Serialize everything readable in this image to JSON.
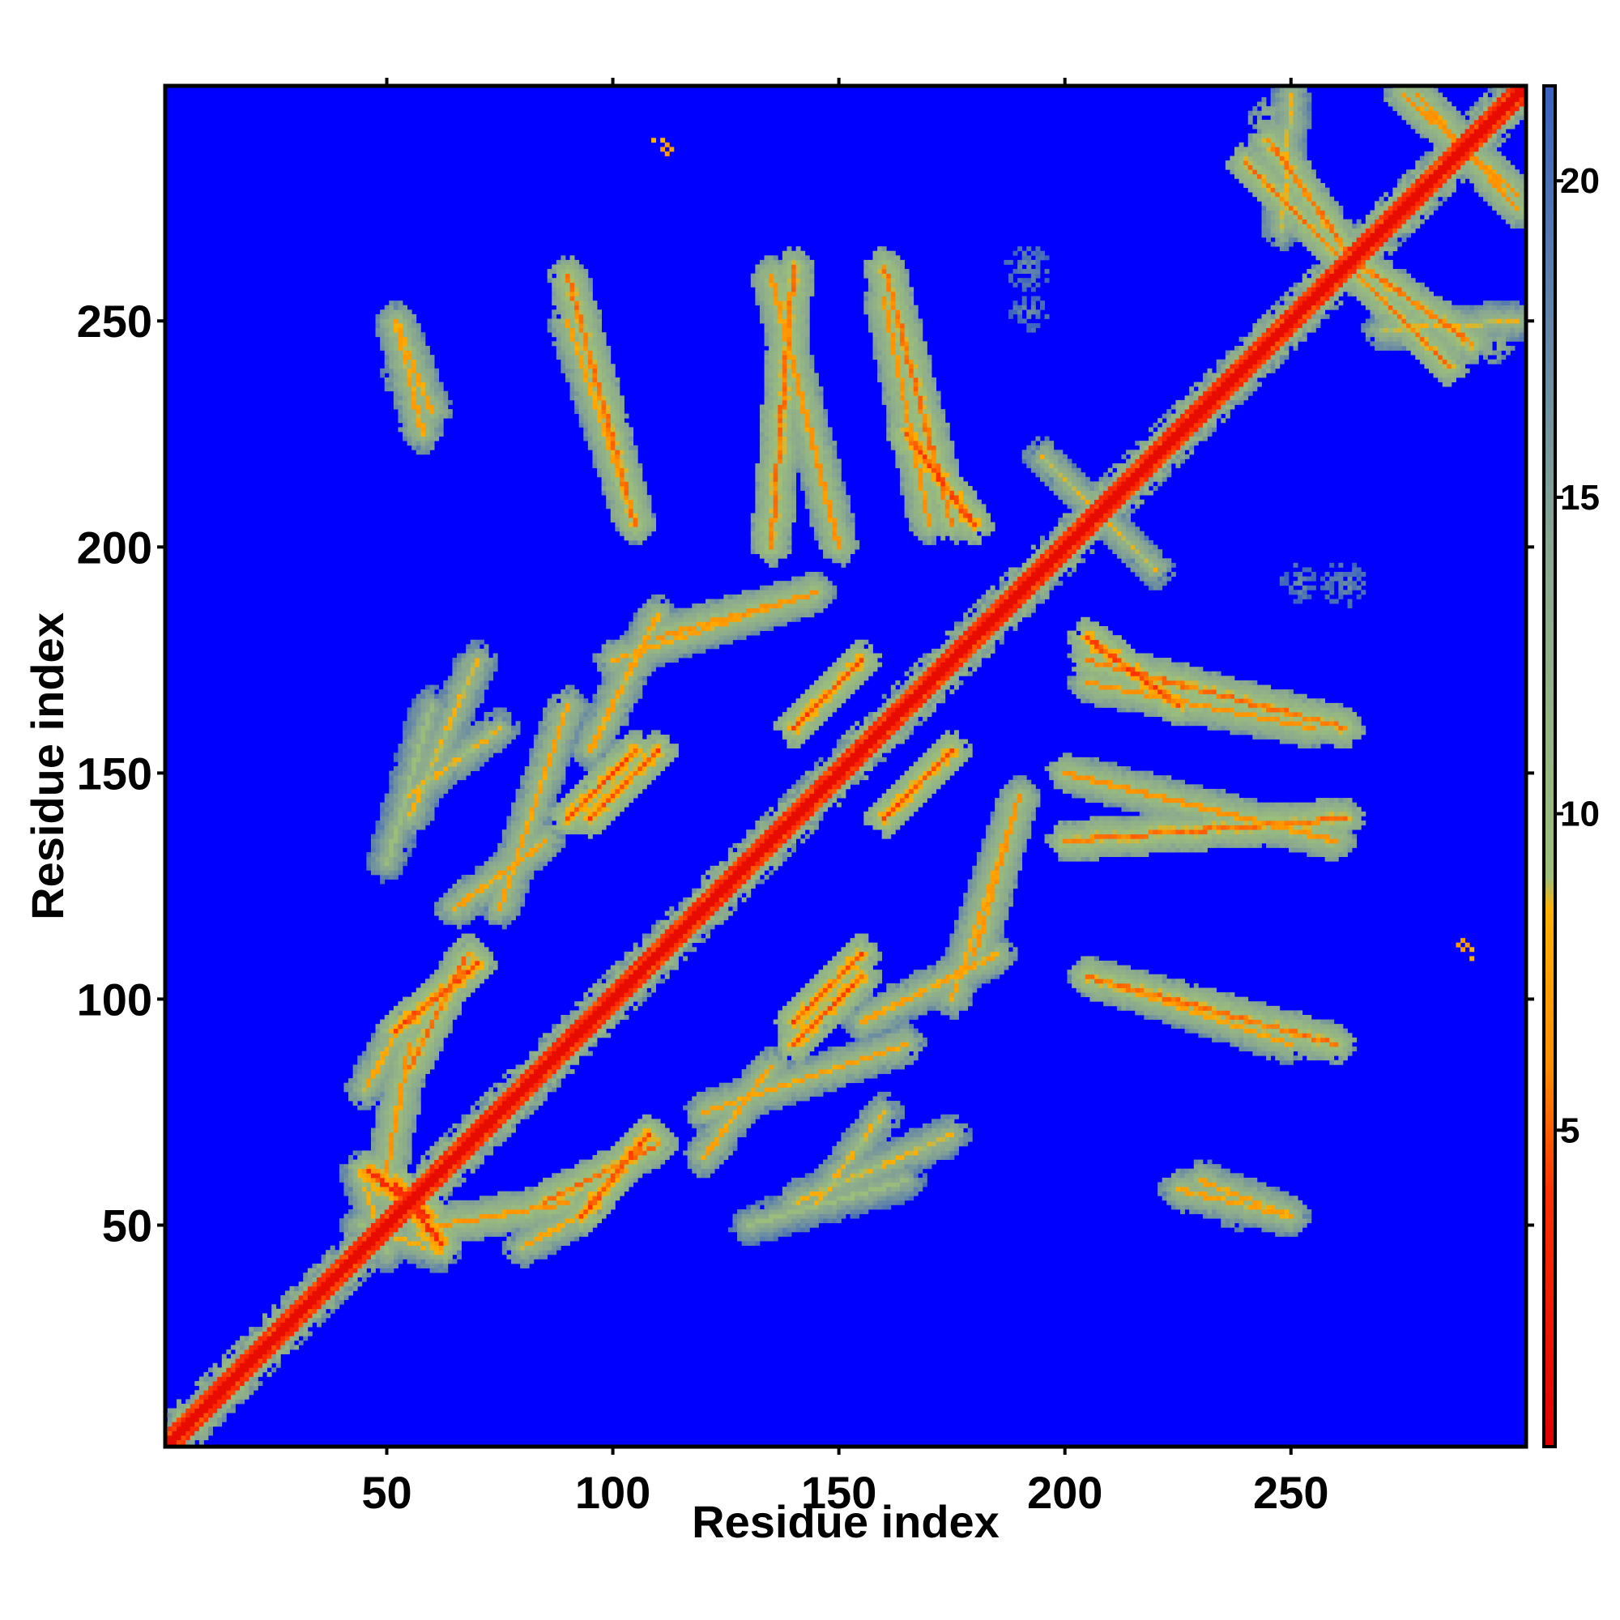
{
  "chart_data": {
    "type": "heatmap",
    "title": "",
    "xlabel": "Residue index",
    "ylabel": "Residue index",
    "xlim": [
      1,
      302
    ],
    "ylim": [
      1,
      302
    ],
    "x_ticks": [
      50,
      100,
      150,
      200,
      250
    ],
    "y_ticks": [
      50,
      100,
      150,
      200,
      250
    ],
    "colorbar": {
      "range": [
        0,
        21.5
      ],
      "ticks": [
        5,
        10,
        15,
        20
      ],
      "stops": [
        {
          "value": 0,
          "color": "#e00000"
        },
        {
          "value": 4,
          "color": "#ff3000"
        },
        {
          "value": 6,
          "color": "#ff8c00"
        },
        {
          "value": 8.5,
          "color": "#ffb000"
        },
        {
          "value": 9,
          "color": "#9cbf7a"
        },
        {
          "value": 14,
          "color": "#8aa890"
        },
        {
          "value": 21.5,
          "color": "#3a62c0"
        }
      ],
      "background_color": "#0000ff"
    },
    "value_meaning": "pairwise residue distance; band cells ~ 0-4 on diagonal, blue = beyond cutoff",
    "diagonal": {
      "from": 1,
      "to": 302,
      "core_value": 1,
      "halo_value": 6
    },
    "contact_features": [
      {
        "kind": "band",
        "x1": 52,
        "y1": 59,
        "x2": 62,
        "y2": 46,
        "value": 5
      },
      {
        "kind": "band",
        "x1": 44,
        "y1": 50,
        "x2": 62,
        "y2": 44,
        "value": 10
      },
      {
        "kind": "band",
        "x1": 52,
        "y1": 93,
        "x2": 70,
        "y2": 108,
        "value": 6
      },
      {
        "kind": "band",
        "x1": 45,
        "y1": 80,
        "x2": 52,
        "y2": 92,
        "value": 9
      },
      {
        "kind": "band",
        "x1": 85,
        "y1": 55,
        "x2": 110,
        "y2": 68,
        "value": 7
      },
      {
        "kind": "band",
        "x1": 62,
        "y1": 50,
        "x2": 90,
        "y2": 55,
        "value": 8
      },
      {
        "kind": "band",
        "x1": 90,
        "y1": 140,
        "x2": 105,
        "y2": 155,
        "value": 6
      },
      {
        "kind": "band",
        "x1": 65,
        "y1": 120,
        "x2": 85,
        "y2": 135,
        "value": 9
      },
      {
        "kind": "band",
        "x1": 50,
        "y1": 130,
        "x2": 60,
        "y2": 165,
        "value": 11
      },
      {
        "kind": "band",
        "x1": 95,
        "y1": 155,
        "x2": 110,
        "y2": 185,
        "value": 9
      },
      {
        "kind": "band",
        "x1": 110,
        "y1": 180,
        "x2": 145,
        "y2": 190,
        "value": 8
      },
      {
        "kind": "band",
        "x1": 55,
        "y1": 145,
        "x2": 75,
        "y2": 160,
        "value": 10
      },
      {
        "kind": "band",
        "x1": 90,
        "y1": 250,
        "x2": 105,
        "y2": 205,
        "value": 9
      },
      {
        "kind": "band",
        "x1": 52,
        "y1": 250,
        "x2": 58,
        "y2": 225,
        "value": 9
      },
      {
        "kind": "band",
        "x1": 135,
        "y1": 260,
        "x2": 150,
        "y2": 200,
        "value": 8
      },
      {
        "kind": "band",
        "x1": 160,
        "y1": 255,
        "x2": 170,
        "y2": 205,
        "value": 8
      },
      {
        "kind": "band",
        "x1": 165,
        "y1": 225,
        "x2": 180,
        "y2": 205,
        "value": 6
      },
      {
        "kind": "band",
        "x1": 155,
        "y1": 110,
        "x2": 140,
        "y2": 95,
        "value": 6
      },
      {
        "kind": "band",
        "x1": 120,
        "y1": 75,
        "x2": 165,
        "y2": 90,
        "value": 9
      },
      {
        "kind": "band",
        "x1": 160,
        "y1": 140,
        "x2": 175,
        "y2": 155,
        "value": 6
      },
      {
        "kind": "band",
        "x1": 175,
        "y1": 100,
        "x2": 190,
        "y2": 145,
        "value": 9
      },
      {
        "kind": "band",
        "x1": 140,
        "y1": 55,
        "x2": 175,
        "y2": 70,
        "value": 10
      },
      {
        "kind": "band",
        "x1": 205,
        "y1": 105,
        "x2": 260,
        "y2": 90,
        "value": 7
      },
      {
        "kind": "band",
        "x1": 200,
        "y1": 135,
        "x2": 262,
        "y2": 140,
        "value": 7
      },
      {
        "kind": "band",
        "x1": 205,
        "y1": 175,
        "x2": 262,
        "y2": 160,
        "value": 7
      },
      {
        "kind": "band",
        "x1": 205,
        "y1": 210,
        "x2": 220,
        "y2": 195,
        "value": 10
      },
      {
        "kind": "band",
        "x1": 230,
        "y1": 60,
        "x2": 250,
        "y2": 52,
        "value": 9
      },
      {
        "kind": "band",
        "x1": 240,
        "y1": 285,
        "x2": 260,
        "y2": 265,
        "value": 7
      },
      {
        "kind": "band",
        "x1": 262,
        "y1": 265,
        "x2": 290,
        "y2": 245,
        "value": 7
      },
      {
        "kind": "band",
        "x1": 275,
        "y1": 300,
        "x2": 300,
        "y2": 278,
        "value": 8
      },
      {
        "kind": "band",
        "x1": 250,
        "y1": 300,
        "x2": 248,
        "y2": 270,
        "value": 10
      },
      {
        "kind": "blob",
        "x": 55,
        "y": 238,
        "r": 6,
        "value": 10
      },
      {
        "kind": "blob",
        "x": 192,
        "y": 262,
        "r": 5,
        "value": 15
      },
      {
        "kind": "blob",
        "x": 252,
        "y": 192,
        "r": 4,
        "value": 15
      },
      {
        "kind": "blob",
        "x": 110,
        "y": 290,
        "r": 1,
        "value": 5
      },
      {
        "kind": "blob",
        "x": 288,
        "y": 112,
        "r": 1,
        "value": 5
      },
      {
        "kind": "blob",
        "x": 295,
        "y": 245,
        "r": 4,
        "value": 11
      }
    ]
  }
}
